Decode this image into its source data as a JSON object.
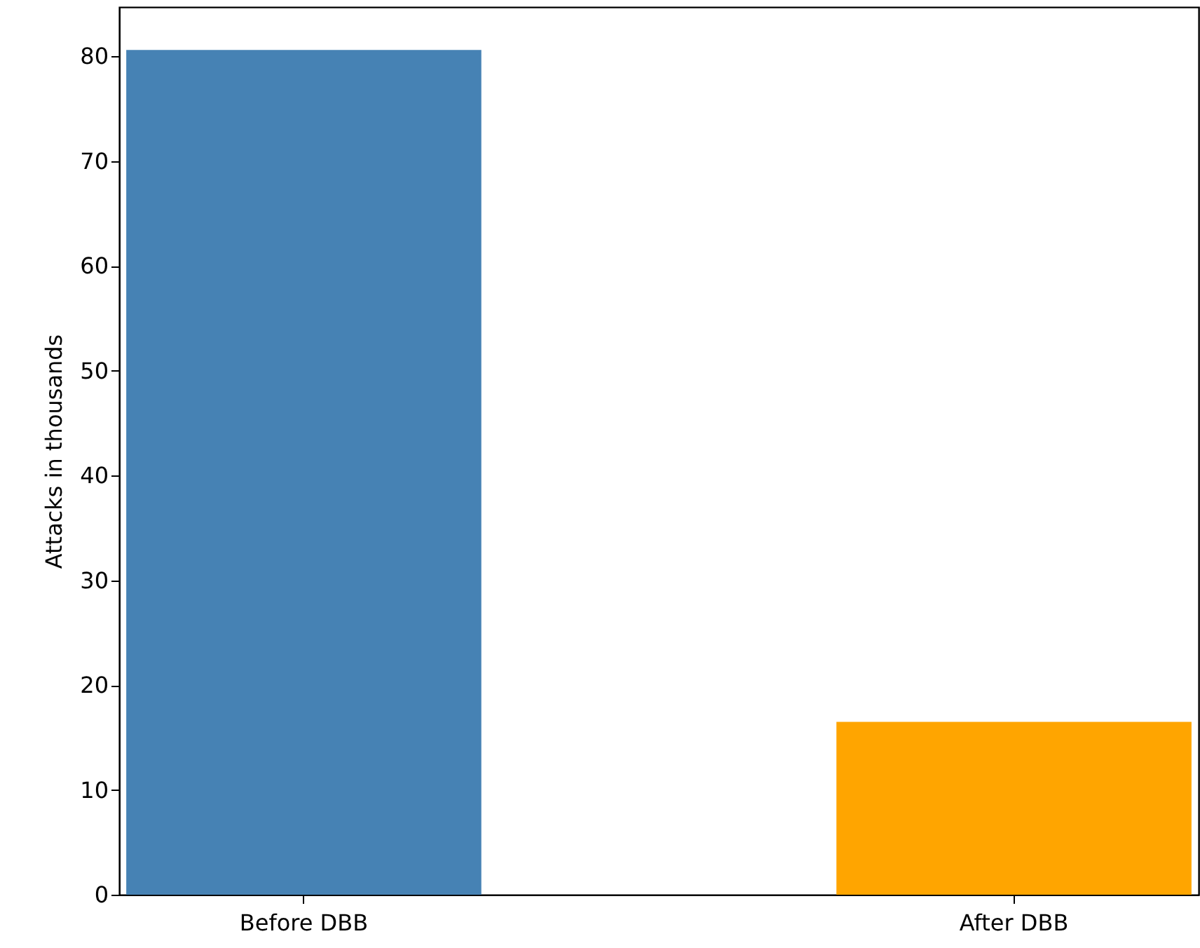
{
  "chart_data": {
    "type": "bar",
    "ylabel": "Attacks in thousands",
    "categories": [
      "Before DBB",
      "After DBB"
    ],
    "values": [
      80.6,
      16.5
    ],
    "colors": [
      "#4682b4",
      "#ffa500"
    ],
    "ylim": [
      0,
      84.7
    ],
    "yticks": [
      0,
      10,
      20,
      30,
      40,
      50,
      60,
      70,
      80
    ],
    "grid": false
  }
}
